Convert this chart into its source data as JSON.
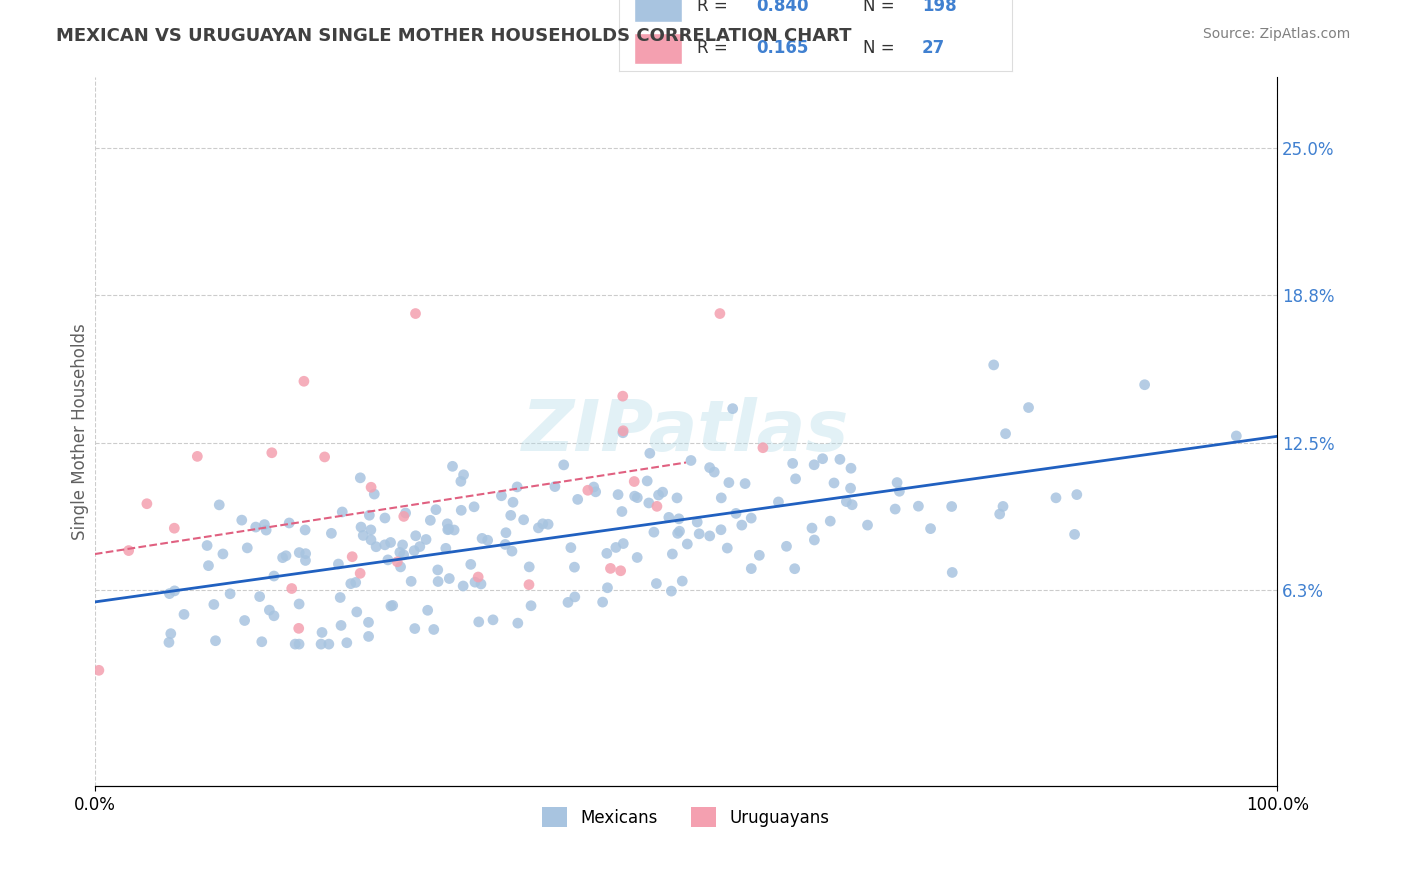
{
  "title": "MEXICAN VS URUGUAYAN SINGLE MOTHER HOUSEHOLDS CORRELATION CHART",
  "source": "Source: ZipAtlas.com",
  "watermark": "ZIPatlas",
  "xlabel": "",
  "ylabel": "Single Mother Households",
  "xlim": [
    0,
    1
  ],
  "ylim": [
    -0.02,
    0.28
  ],
  "yticks": [
    0.063,
    0.125,
    0.188,
    0.25
  ],
  "ytick_labels": [
    "6.3%",
    "12.5%",
    "18.8%",
    "25.0%"
  ],
  "xticks": [
    0.0,
    1.0
  ],
  "xtick_labels": [
    "0.0%",
    "100.0%"
  ],
  "mexican_color": "#a8c4e0",
  "uruguayan_color": "#f4a0b0",
  "mexican_line_color": "#2060c0",
  "uruguayan_line_color": "#e06080",
  "R_mexican": 0.84,
  "N_mexican": 198,
  "R_uruguayan": 0.165,
  "N_uruguayan": 27,
  "background_color": "#ffffff",
  "grid_color": "#cccccc",
  "title_color": "#404040",
  "legend_R_color": "#4080d0",
  "legend_N_color": "#4080d0"
}
